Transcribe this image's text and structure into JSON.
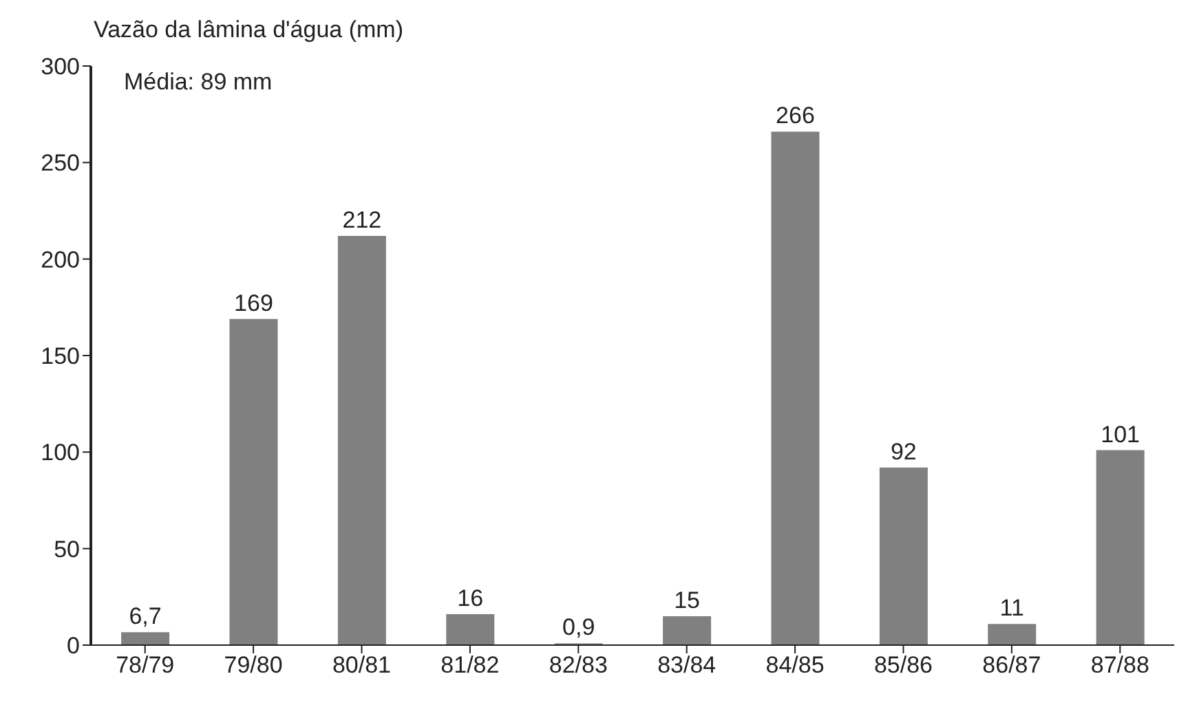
{
  "chart_data": {
    "type": "bar",
    "ylabel": "Vazão da lâmina d'água (mm)",
    "annotations": [
      "Média: 89 mm"
    ],
    "categories": [
      "78/79",
      "79/80",
      "80/81",
      "81/82",
      "82/83",
      "83/84",
      "84/85",
      "85/86",
      "86/87",
      "87/88"
    ],
    "values": [
      6.7,
      169,
      212,
      16,
      0.9,
      15,
      266,
      92,
      11,
      101
    ],
    "value_labels": [
      "6,7",
      "169",
      "212",
      "16",
      "0,9",
      "15",
      "266",
      "92",
      "11",
      "101"
    ],
    "color": "#808080",
    "ylim": [
      0,
      300
    ],
    "yticks": [
      0,
      50,
      100,
      150,
      200,
      250,
      300
    ],
    "grid": false,
    "legend": false
  }
}
